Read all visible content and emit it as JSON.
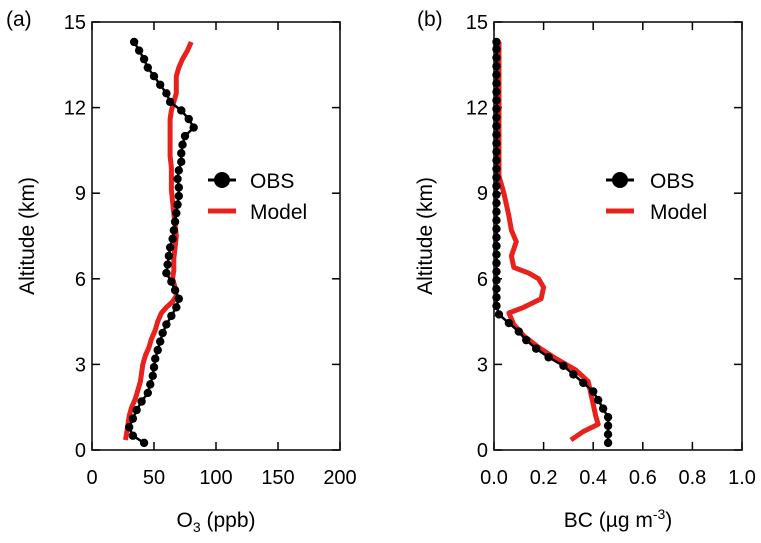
{
  "chart_data": [
    {
      "panel_label": "(a)",
      "type": "line",
      "xlabel_main": "O",
      "xlabel_sub": "3",
      "xlabel_rest": " (ppb)",
      "ylabel": "Altitude (km)",
      "xlim": [
        0,
        200
      ],
      "ylim": [
        0,
        15
      ],
      "xticks": [
        0,
        50,
        100,
        150,
        200
      ],
      "xtick_labels": [
        "0",
        "50",
        "100",
        "150",
        "200"
      ],
      "yticks": [
        0,
        3,
        6,
        9,
        12,
        15
      ],
      "ytick_labels": [
        "0",
        "3",
        "6",
        "9",
        "12",
        "15"
      ],
      "grid": false,
      "legend_position": "center-right",
      "series": [
        {
          "name": "OBS",
          "color": "#000000",
          "marker": "circle",
          "points": [
            [
              42,
              0.25
            ],
            [
              33,
              0.5
            ],
            [
              30,
              0.8
            ],
            [
              33,
              1.1
            ],
            [
              36,
              1.4
            ],
            [
              40,
              1.7
            ],
            [
              45,
              2.0
            ],
            [
              47,
              2.3
            ],
            [
              49,
              2.6
            ],
            [
              50,
              2.9
            ],
            [
              51,
              3.2
            ],
            [
              53,
              3.5
            ],
            [
              55,
              3.8
            ],
            [
              57,
              4.1
            ],
            [
              60,
              4.4
            ],
            [
              64,
              4.7
            ],
            [
              68,
              5.0
            ],
            [
              70,
              5.3
            ],
            [
              67,
              5.6
            ],
            [
              64,
              5.9
            ],
            [
              60,
              6.2
            ],
            [
              61,
              6.5
            ],
            [
              62,
              6.8
            ],
            [
              63,
              7.1
            ],
            [
              65,
              7.4
            ],
            [
              66,
              7.7
            ],
            [
              67,
              8.0
            ],
            [
              68,
              8.3
            ],
            [
              69,
              8.6
            ],
            [
              70,
              8.9
            ],
            [
              70,
              9.2
            ],
            [
              69,
              9.5
            ],
            [
              70,
              9.8
            ],
            [
              72,
              10.1
            ],
            [
              72,
              10.4
            ],
            [
              73,
              10.7
            ],
            [
              75,
              11.0
            ],
            [
              82,
              11.3
            ],
            [
              78,
              11.6
            ],
            [
              72,
              11.9
            ],
            [
              63,
              12.2
            ],
            [
              60,
              12.5
            ],
            [
              55,
              12.8
            ],
            [
              50,
              13.1
            ],
            [
              45,
              13.4
            ],
            [
              42,
              13.7
            ],
            [
              38,
              14.0
            ],
            [
              34,
              14.3
            ]
          ]
        },
        {
          "name": "Model",
          "color": "#e8211d",
          "marker": "none",
          "points": [
            [
              27,
              0.35
            ],
            [
              28,
              0.6
            ],
            [
              29,
              0.9
            ],
            [
              30,
              1.2
            ],
            [
              32,
              1.5
            ],
            [
              35,
              1.8
            ],
            [
              37,
              2.1
            ],
            [
              39,
              2.4
            ],
            [
              40,
              2.7
            ],
            [
              41,
              3.0
            ],
            [
              43,
              3.3
            ],
            [
              46,
              3.6
            ],
            [
              48,
              3.9
            ],
            [
              51,
              4.2
            ],
            [
              53,
              4.5
            ],
            [
              56,
              4.8
            ],
            [
              60,
              5.0
            ],
            [
              65,
              5.2
            ],
            [
              68,
              5.4
            ],
            [
              67,
              5.7
            ],
            [
              65,
              6.0
            ],
            [
              66,
              6.3
            ],
            [
              66,
              6.7
            ],
            [
              67,
              7.1
            ],
            [
              68,
              7.5
            ],
            [
              67,
              7.9
            ],
            [
              66,
              8.3
            ],
            [
              65,
              8.7
            ],
            [
              64,
              9.1
            ],
            [
              64,
              9.5
            ],
            [
              64,
              9.9
            ],
            [
              63,
              10.3
            ],
            [
              63,
              10.7
            ],
            [
              63,
              11.0
            ],
            [
              63,
              11.3
            ],
            [
              63,
              11.6
            ],
            [
              64,
              11.9
            ],
            [
              66,
              12.2
            ],
            [
              68,
              12.5
            ],
            [
              68,
              12.8
            ],
            [
              68,
              13.1
            ],
            [
              70,
              13.4
            ],
            [
              73,
              13.7
            ],
            [
              77,
              14.0
            ],
            [
              80,
              14.3
            ]
          ]
        }
      ]
    },
    {
      "panel_label": "(b)",
      "type": "line",
      "xlabel_main": "BC (µg m",
      "xlabel_sup": "-3",
      "xlabel_rest": ")",
      "ylabel": "Altitude (km)",
      "xlim": [
        0,
        1.0
      ],
      "ylim": [
        0,
        15
      ],
      "xticks": [
        0,
        0.2,
        0.4,
        0.6,
        0.8,
        1.0
      ],
      "xtick_labels": [
        "0.0",
        "0.2",
        "0.4",
        "0.6",
        "0.8",
        "1.0"
      ],
      "yticks": [
        0,
        3,
        6,
        9,
        12,
        15
      ],
      "ytick_labels": [
        "0",
        "3",
        "6",
        "9",
        "12",
        "15"
      ],
      "grid": false,
      "legend_position": "center-right",
      "series": [
        {
          "name": "OBS",
          "color": "#000000",
          "marker": "circle",
          "points": [
            [
              0.46,
              0.25
            ],
            [
              0.46,
              0.55
            ],
            [
              0.46,
              0.85
            ],
            [
              0.46,
              1.15
            ],
            [
              0.44,
              1.45
            ],
            [
              0.42,
              1.75
            ],
            [
              0.4,
              2.05
            ],
            [
              0.36,
              2.35
            ],
            [
              0.32,
              2.65
            ],
            [
              0.28,
              2.95
            ],
            [
              0.22,
              3.25
            ],
            [
              0.17,
              3.55
            ],
            [
              0.13,
              3.85
            ],
            [
              0.1,
              4.15
            ],
            [
              0.06,
              4.45
            ],
            [
              0.02,
              4.75
            ],
            [
              0.01,
              5.05
            ],
            [
              0.01,
              5.35
            ],
            [
              0.01,
              5.65
            ],
            [
              0.01,
              5.95
            ],
            [
              0.01,
              6.25
            ],
            [
              0.01,
              6.55
            ],
            [
              0.01,
              6.85
            ],
            [
              0.01,
              7.15
            ],
            [
              0.01,
              7.45
            ],
            [
              0.01,
              7.75
            ],
            [
              0.01,
              8.05
            ],
            [
              0.01,
              8.35
            ],
            [
              0.01,
              8.65
            ],
            [
              0.01,
              8.95
            ],
            [
              0.01,
              9.25
            ],
            [
              0.01,
              9.55
            ],
            [
              0.01,
              9.85
            ],
            [
              0.01,
              10.15
            ],
            [
              0.01,
              10.45
            ],
            [
              0.01,
              10.75
            ],
            [
              0.01,
              11.05
            ],
            [
              0.01,
              11.35
            ],
            [
              0.01,
              11.65
            ],
            [
              0.01,
              11.95
            ],
            [
              0.01,
              12.25
            ],
            [
              0.01,
              12.55
            ],
            [
              0.01,
              12.85
            ],
            [
              0.01,
              13.15
            ],
            [
              0.01,
              13.45
            ],
            [
              0.01,
              13.75
            ],
            [
              0.01,
              14.05
            ],
            [
              0.01,
              14.3
            ]
          ]
        },
        {
          "name": "Model",
          "color": "#e8211d",
          "marker": "none",
          "points": [
            [
              0.31,
              0.35
            ],
            [
              0.36,
              0.65
            ],
            [
              0.42,
              0.9
            ],
            [
              0.41,
              1.2
            ],
            [
              0.4,
              1.6
            ],
            [
              0.39,
              2.0
            ],
            [
              0.38,
              2.4
            ],
            [
              0.33,
              2.8
            ],
            [
              0.25,
              3.2
            ],
            [
              0.18,
              3.6
            ],
            [
              0.12,
              4.0
            ],
            [
              0.08,
              4.4
            ],
            [
              0.06,
              4.8
            ],
            [
              0.12,
              5.0
            ],
            [
              0.19,
              5.3
            ],
            [
              0.2,
              5.7
            ],
            [
              0.18,
              6.0
            ],
            [
              0.14,
              6.2
            ],
            [
              0.08,
              6.4
            ],
            [
              0.07,
              6.8
            ],
            [
              0.09,
              7.3
            ],
            [
              0.07,
              7.7
            ],
            [
              0.06,
              8.2
            ],
            [
              0.05,
              8.6
            ],
            [
              0.04,
              9.0
            ],
            [
              0.03,
              9.3
            ],
            [
              0.02,
              9.6
            ],
            [
              0.02,
              10.0
            ],
            [
              0.02,
              10.5
            ],
            [
              0.02,
              11.0
            ],
            [
              0.02,
              11.5
            ],
            [
              0.02,
              12.0
            ],
            [
              0.02,
              12.5
            ],
            [
              0.02,
              13.0
            ],
            [
              0.02,
              13.5
            ],
            [
              0.02,
              14.0
            ],
            [
              0.02,
              14.3
            ]
          ]
        }
      ]
    }
  ]
}
